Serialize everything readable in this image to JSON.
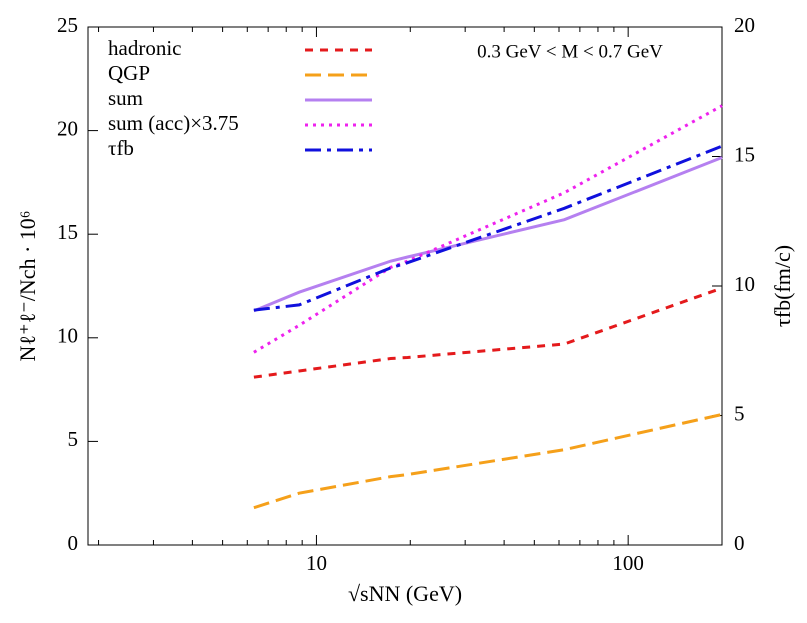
{
  "chart_data": {
    "type": "line",
    "annotation": "0.3 GeV < M < 0.7 GeV",
    "xlabel": "√sNN (GeV)",
    "ylabel": "Nℓ⁺ℓ⁻/Nch · 10⁶",
    "y2label": "τfb(fm/c)",
    "log_x": true,
    "xlim": [
      1.85,
      200
    ],
    "xticks": [
      10,
      100
    ],
    "xminorticks": [
      2,
      3,
      4,
      5,
      6,
      7,
      8,
      9,
      20,
      30,
      40,
      50,
      60,
      70,
      80,
      90,
      200
    ],
    "ylim": [
      0,
      25
    ],
    "yticks": [
      0,
      5,
      10,
      15,
      20,
      25
    ],
    "y2lim": [
      0,
      20
    ],
    "y2ticks": [
      0,
      5,
      10,
      15,
      20
    ],
    "legend": "upper left",
    "x": [
      6.3,
      8.8,
      17.3,
      19.6,
      62.4,
      200
    ],
    "series": [
      {
        "name": "hadronic",
        "color": "#e41a1c",
        "dash": "short",
        "values": [
          8.1,
          8.4,
          9.0,
          9.05,
          9.7,
          12.4
        ]
      },
      {
        "name": "QGP",
        "color": "#f5a01a",
        "dash": "long",
        "values": [
          1.8,
          2.5,
          3.3,
          3.4,
          4.6,
          6.3
        ]
      },
      {
        "name": "sum",
        "color": "#b580f0",
        "dash": "solid",
        "values": [
          11.3,
          12.2,
          13.7,
          13.9,
          15.7,
          18.7
        ]
      },
      {
        "name": "sum (acc)×3.75",
        "color": "#ee22ee",
        "dash": "dot",
        "values": [
          9.3,
          10.6,
          13.4,
          13.7,
          17.0,
          21.2
        ]
      },
      {
        "name": "τfb",
        "color": "#1010dd",
        "dash": "dashdot",
        "axis": "y2",
        "values": [
          9.07,
          9.27,
          10.7,
          10.9,
          13.0,
          15.4
        ]
      }
    ]
  }
}
